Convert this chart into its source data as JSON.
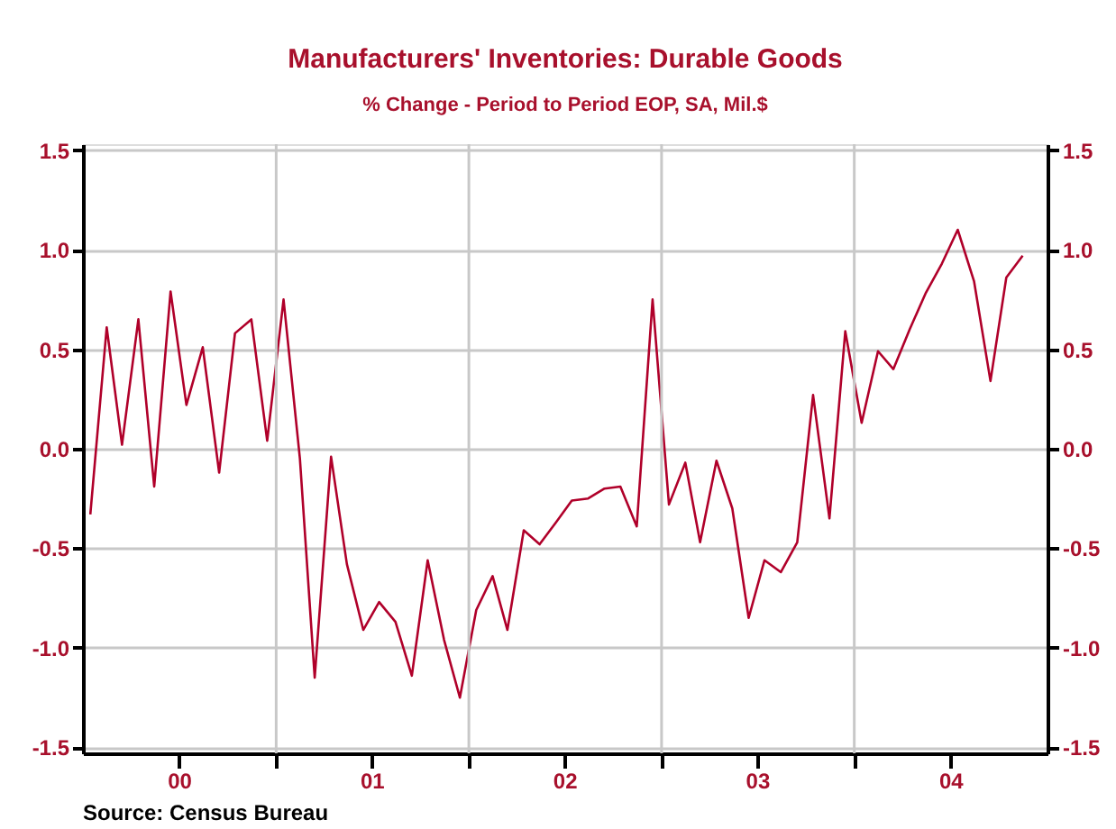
{
  "chart_data": {
    "type": "line",
    "title": "Manufacturers' Inventories: Durable Goods",
    "subtitle": "% Change - Period to Period      EOP, SA, Mil.$",
    "x": [
      "2000-01-15",
      "2000-02-15",
      "2000-03-15",
      "2000-04-15",
      "2000-05-15",
      "2000-06-15",
      "2000-07-15",
      "2000-08-15",
      "2000-09-15",
      "2000-10-15",
      "2000-11-15",
      "2000-12-15",
      "2001-01-15",
      "2001-02-15",
      "2001-03-15",
      "2001-04-15",
      "2001-05-15",
      "2001-06-15",
      "2001-07-15",
      "2001-08-15",
      "2001-09-15",
      "2001-10-15",
      "2001-11-15",
      "2001-12-15",
      "2002-01-15",
      "2002-02-15",
      "2002-03-15",
      "2002-04-15",
      "2002-05-15",
      "2002-06-15",
      "2002-07-15",
      "2002-08-15",
      "2002-09-15",
      "2002-10-15",
      "2002-11-15",
      "2002-12-15",
      "2003-01-15",
      "2003-02-15",
      "2003-03-15",
      "2003-04-15",
      "2003-05-15",
      "2003-06-15",
      "2003-07-15",
      "2003-08-15",
      "2003-09-15",
      "2003-10-15",
      "2003-11-15",
      "2003-12-15",
      "2004-01-15",
      "2004-02-15",
      "2004-03-15",
      "2004-04-15",
      "2004-05-15",
      "2004-06-15",
      "2004-07-15",
      "2004-08-15",
      "2004-09-15",
      "2004-10-15",
      "2004-11-15"
    ],
    "series": [
      {
        "color": "#b0002a",
        "values": [
          -0.33,
          0.61,
          0.02,
          0.65,
          -0.19,
          0.79,
          0.22,
          0.51,
          -0.12,
          0.58,
          0.65,
          0.04,
          0.75,
          -0.05,
          -1.15,
          -0.04,
          -0.58,
          -0.91,
          -0.77,
          -0.87,
          -1.14,
          -0.56,
          -0.96,
          -1.25,
          -0.81,
          -0.64,
          -0.91,
          -0.41,
          -0.48,
          -0.37,
          -0.26,
          -0.25,
          -0.2,
          -0.19,
          -0.39,
          0.75,
          -0.28,
          -0.07,
          -0.47,
          -0.06,
          -0.3,
          -0.85,
          -0.56,
          -0.62,
          -0.47,
          0.27,
          -0.35,
          0.59,
          0.13,
          0.49,
          0.4,
          0.6,
          0.78,
          0.93,
          1.1,
          0.84,
          0.34,
          0.86,
          0.97
        ]
      }
    ],
    "xlim": [
      "2000-01-01",
      "2005-01-01"
    ],
    "xticks": [
      {
        "value": "2000-07-01",
        "label": "00"
      },
      {
        "value": "2001-01-01",
        "label": null
      },
      {
        "value": "2001-07-01",
        "label": "01"
      },
      {
        "value": "2002-01-01",
        "label": null
      },
      {
        "value": "2002-07-01",
        "label": "02"
      },
      {
        "value": "2003-01-01",
        "label": null
      },
      {
        "value": "2003-07-01",
        "label": "03"
      },
      {
        "value": "2004-01-01",
        "label": null
      },
      {
        "value": "2004-07-01",
        "label": "04"
      }
    ],
    "ylim": [
      -1.53,
      1.53
    ],
    "yticks": [
      {
        "value": -1.5,
        "label": "-1.5"
      },
      {
        "value": -1,
        "label": "-1.0"
      },
      {
        "value": -0.5,
        "label": "-0.5"
      },
      {
        "value": 0,
        "label": "0.0"
      },
      {
        "value": 0.5,
        "label": "0.5"
      },
      {
        "value": 1,
        "label": "1.0"
      },
      {
        "value": 1.5,
        "label": "1.5"
      }
    ],
    "y2lim": [
      -1.53,
      1.53
    ],
    "y2ticks": [
      {
        "value": -1.5,
        "label": "-1.5"
      },
      {
        "value": -1,
        "label": "-1.0"
      },
      {
        "value": -0.5,
        "label": "-0.5"
      },
      {
        "value": 0,
        "label": "0.0"
      },
      {
        "value": 0.5,
        "label": "0.5"
      },
      {
        "value": 1,
        "label": "1.0"
      },
      {
        "value": 1.5,
        "label": "1.5"
      }
    ],
    "grid": true,
    "marker": "none",
    "line_style": "solid",
    "annotations": [
      "Source:  Census Bureau"
    ]
  }
}
